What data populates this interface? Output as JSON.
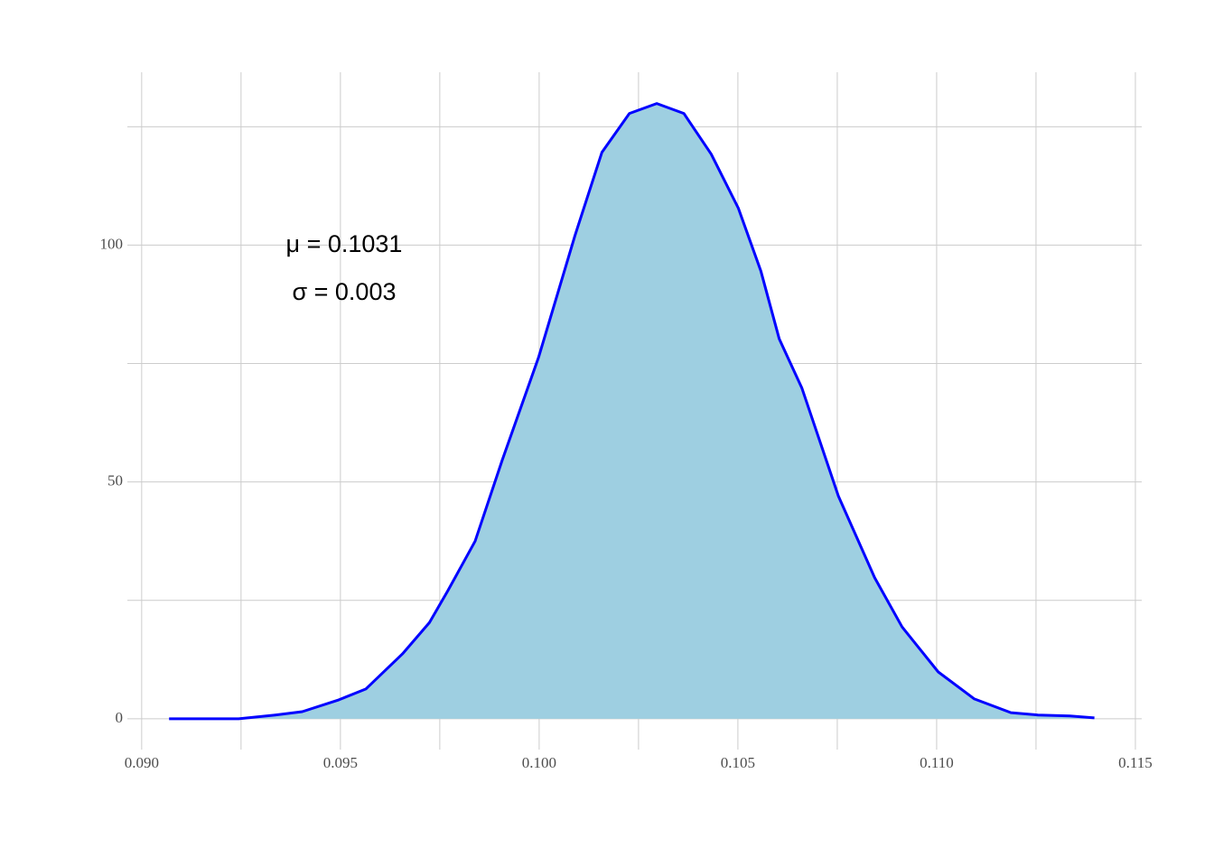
{
  "chart_data": {
    "type": "density",
    "annotations": [
      "μ = 0.1031",
      "σ = 0.003"
    ],
    "x": [
      0.09069,
      0.09153,
      0.09244,
      0.09336,
      0.09404,
      0.09496,
      0.09564,
      0.09656,
      0.09724,
      0.0977,
      0.09839,
      0.09907,
      0.09999,
      0.1009,
      0.10158,
      0.10227,
      0.10296,
      0.10364,
      0.10433,
      0.10501,
      0.10558,
      0.10604,
      0.10661,
      0.10753,
      0.10844,
      0.10913,
      0.11004,
      0.11095,
      0.11187,
      0.11255,
      0.11335,
      0.11397
    ],
    "values": [
      0,
      0,
      0,
      0.8,
      1.5,
      4,
      6.3,
      13.7,
      20.3,
      27,
      37.5,
      54.6,
      76.4,
      102,
      119.6,
      127.8,
      129.9,
      127.8,
      119.2,
      107.8,
      94.5,
      80.2,
      69.8,
      47,
      29.8,
      19.4,
      9.9,
      4.2,
      1.3,
      0.8,
      0.6,
      0.2
    ],
    "fill_color": "#9ecfe1",
    "line_color": "#0000ff",
    "xlim": [
      0.08964,
      0.11516
    ],
    "ylim": [
      -6.5,
      136.5
    ],
    "xticks": [
      {
        "value": 0.09,
        "label": "0.090"
      },
      {
        "value": 0.095,
        "label": "0.095"
      },
      {
        "value": 0.1,
        "label": "0.100"
      },
      {
        "value": 0.105,
        "label": "0.105"
      },
      {
        "value": 0.11,
        "label": "0.110"
      },
      {
        "value": 0.115,
        "label": "0.115"
      }
    ],
    "x_minor_ticks": [
      0.0925,
      0.0975,
      0.1025,
      0.1075,
      0.1125
    ],
    "yticks": [
      0,
      50,
      100
    ],
    "y_minor_ticks": [
      25,
      75,
      125
    ],
    "grid": true
  }
}
